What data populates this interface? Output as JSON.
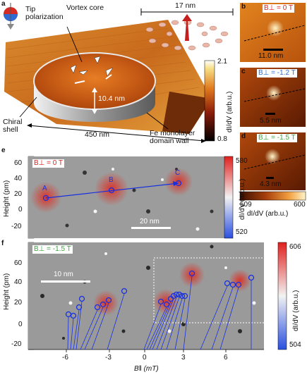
{
  "panel_a": {
    "label": "a",
    "tip_polarization": "Tip\npolarization",
    "vortex_core": "Vortex core",
    "scale_17": "17 nm",
    "height": "10.4 nm",
    "chiral_shell": "Chiral\nshell",
    "width": "450 nm",
    "domain_wall": "Fe monolayer\ndomain wall",
    "cbar_max": "2.1",
    "cbar_min": "0.8",
    "cbar_label": "dI/dV (arb.u.)"
  },
  "panel_b": {
    "label": "b",
    "field": "B⊥ = 0 T",
    "scale": "11.0 nm"
  },
  "panel_c": {
    "label": "c",
    "field": "B⊥ = -1.2 T",
    "scale": "5.5 nm"
  },
  "panel_d": {
    "label": "d",
    "field": "B⊥ = -1.5 T",
    "scale": "4.3 nm"
  },
  "bcd_cbar": {
    "min": "509",
    "max": "600",
    "label": "dI/dV (arb.u.)"
  },
  "panel_e": {
    "label": "e",
    "field": "B⊥ = 0 T",
    "ylabel": "Height (pm)",
    "yticks": [
      "60",
      "40",
      "20",
      "0",
      "-20"
    ],
    "points": [
      "A",
      "B",
      "C"
    ],
    "scale": "20 nm",
    "cbar_max": "580",
    "cbar_min": "520",
    "cbar_label": "dI/dV (arb.u.)"
  },
  "panel_f": {
    "label": "f",
    "field": "B⊥ = -1.5 T",
    "ylabel": "Height (pm)",
    "yticks": [
      "60",
      "40",
      "20",
      "0",
      "-20"
    ],
    "scale": "10 nm",
    "xticks": [
      "-6",
      "-3",
      "0",
      "3",
      "6"
    ],
    "xlabel": "B‖ (mT)",
    "cbar_max": "606",
    "cbar_min": "504",
    "cbar_label": "dI/dV (arb.u.)"
  },
  "colors": {
    "accent_blue": "#1730e0",
    "red_field": "#e0201e",
    "blue_field": "#2a6fd4",
    "green_field": "#3ca63c"
  }
}
